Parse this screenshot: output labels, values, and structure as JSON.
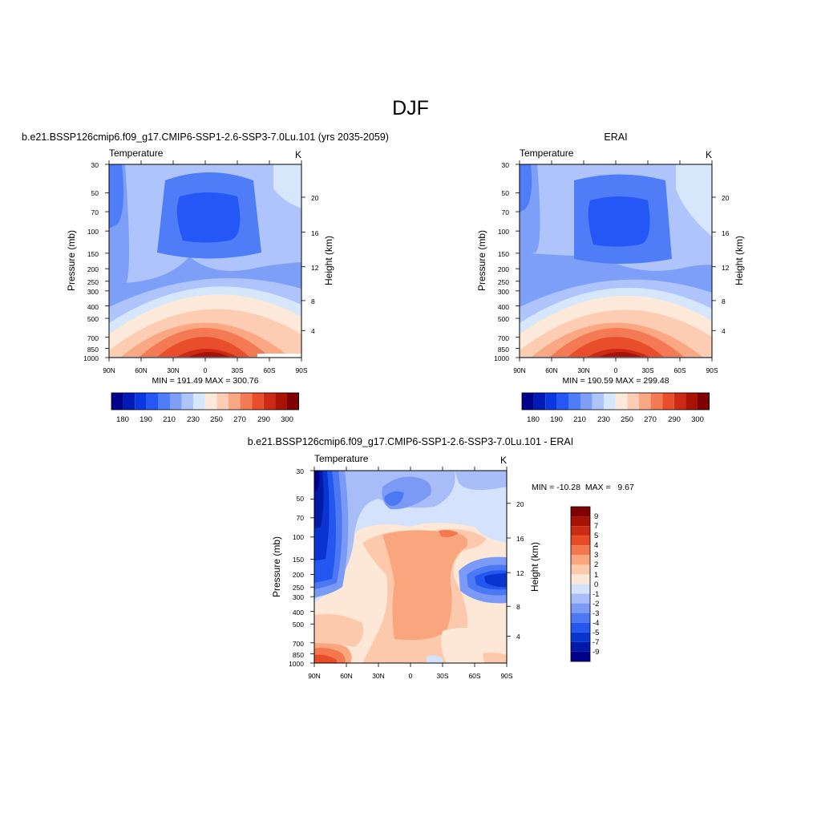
{
  "page_title": "DJF",
  "colors": {
    "abs_scale": [
      "#00008b",
      "#001ab8",
      "#0a38e0",
      "#2457f5",
      "#4f7cf7",
      "#7e9ff8",
      "#aec4fa",
      "#d6e6fb",
      "#fde9da",
      "#fccdb3",
      "#f9a883",
      "#f47a56",
      "#e84e2c",
      "#cc2a14",
      "#a81306",
      "#7f0000"
    ],
    "diff_scale": [
      "#00008b",
      "#001aa8",
      "#0a34d0",
      "#2456f0",
      "#4d78f4",
      "#7a9af6",
      "#a8bdf8",
      "#d4e3fb",
      "#fde8d8",
      "#fcc9ad",
      "#f9a57e",
      "#f4784f",
      "#e74c26",
      "#ca2b12",
      "#a51306",
      "#7f0000"
    ]
  },
  "chart_data": [
    {
      "id": "model",
      "type": "heatmap",
      "title": "b.e21.BSSP126cmip6.f09_g17.CMIP6-SSP1-2.6-SSP3-7.0Lu.101 (yrs 2035-2059)",
      "subtitle_left": "Temperature",
      "subtitle_right": "K",
      "ylabel": "Pressure (mb)",
      "y2label": "Height (km)",
      "xticks": [
        "90N",
        "60N",
        "30N",
        "0",
        "30S",
        "60S",
        "90S"
      ],
      "yticks": [
        "30",
        "50",
        "70",
        "100",
        "150",
        "200",
        "250",
        "300",
        "400",
        "500",
        "700",
        "850",
        "1000"
      ],
      "y2ticks": [
        "20",
        "16",
        "12",
        "8",
        "4"
      ],
      "stats": "MIN = 191.49  MAX = 300.76",
      "min": 191.49,
      "max": 300.76,
      "colorbar_labels": [
        "180",
        "190",
        "210",
        "230",
        "250",
        "270",
        "290",
        "300"
      ]
    },
    {
      "id": "obs",
      "type": "heatmap",
      "title": "ERAI",
      "subtitle_left": "Temperature",
      "subtitle_right": "K",
      "ylabel": "Pressure (mb)",
      "y2label": "Height (km)",
      "xticks": [
        "90N",
        "60N",
        "30N",
        "0",
        "30S",
        "60S",
        "90S"
      ],
      "yticks": [
        "30",
        "50",
        "70",
        "100",
        "150",
        "200",
        "250",
        "300",
        "400",
        "500",
        "700",
        "850",
        "1000"
      ],
      "y2ticks": [
        "20",
        "16",
        "12",
        "8",
        "4"
      ],
      "stats": "MIN = 190.59  MAX = 299.48",
      "min": 190.59,
      "max": 299.48,
      "colorbar_labels": [
        "180",
        "190",
        "210",
        "230",
        "250",
        "270",
        "290",
        "300"
      ]
    },
    {
      "id": "diff",
      "type": "heatmap",
      "title": "b.e21.BSSP126cmip6.f09_g17.CMIP6-SSP1-2.6-SSP3-7.0Lu.101 - ERAI",
      "subtitle_left": "Temperature",
      "subtitle_right": "K",
      "ylabel": "Pressure (mb)",
      "y2label": "Height (km)",
      "xticks": [
        "90N",
        "60N",
        "30N",
        "0",
        "30S",
        "60S",
        "90S"
      ],
      "yticks": [
        "30",
        "50",
        "70",
        "100",
        "150",
        "200",
        "250",
        "300",
        "400",
        "500",
        "700",
        "850",
        "1000"
      ],
      "y2ticks": [
        "20",
        "16",
        "12",
        "8",
        "4"
      ],
      "stats": "MIN = -10.28  MAX =   9.67",
      "min": -10.28,
      "max": 9.67,
      "colorbar_labels": [
        "9",
        "7",
        "5",
        "4",
        "3",
        "2",
        "1",
        "0",
        "-1",
        "-2",
        "-3",
        "-4",
        "-5",
        "-7",
        "-9"
      ]
    }
  ]
}
